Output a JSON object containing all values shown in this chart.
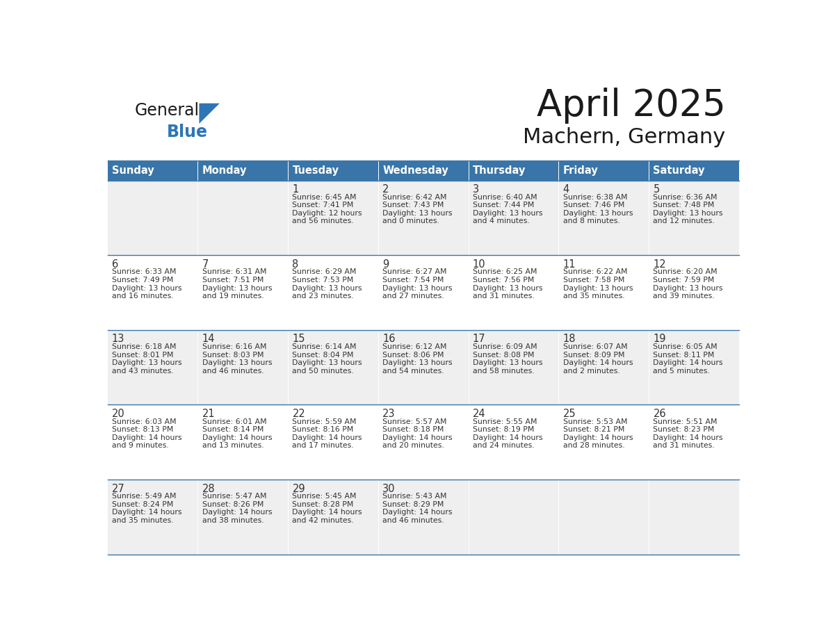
{
  "title": "April 2025",
  "subtitle": "Machern, Germany",
  "header_bg_color": "#3975A8",
  "header_text_color": "#FFFFFF",
  "row_bg_light": "#EFEFEF",
  "row_bg_white": "#FFFFFF",
  "border_color": "#3975A8",
  "cell_text_color": "#333333",
  "days_of_week": [
    "Sunday",
    "Monday",
    "Tuesday",
    "Wednesday",
    "Thursday",
    "Friday",
    "Saturday"
  ],
  "weeks": [
    [
      {
        "day": "",
        "sunrise": "",
        "sunset": "",
        "daylight": ""
      },
      {
        "day": "",
        "sunrise": "",
        "sunset": "",
        "daylight": ""
      },
      {
        "day": "1",
        "sunrise": "Sunrise: 6:45 AM",
        "sunset": "Sunset: 7:41 PM",
        "daylight": "Daylight: 12 hours\nand 56 minutes."
      },
      {
        "day": "2",
        "sunrise": "Sunrise: 6:42 AM",
        "sunset": "Sunset: 7:43 PM",
        "daylight": "Daylight: 13 hours\nand 0 minutes."
      },
      {
        "day": "3",
        "sunrise": "Sunrise: 6:40 AM",
        "sunset": "Sunset: 7:44 PM",
        "daylight": "Daylight: 13 hours\nand 4 minutes."
      },
      {
        "day": "4",
        "sunrise": "Sunrise: 6:38 AM",
        "sunset": "Sunset: 7:46 PM",
        "daylight": "Daylight: 13 hours\nand 8 minutes."
      },
      {
        "day": "5",
        "sunrise": "Sunrise: 6:36 AM",
        "sunset": "Sunset: 7:48 PM",
        "daylight": "Daylight: 13 hours\nand 12 minutes."
      }
    ],
    [
      {
        "day": "6",
        "sunrise": "Sunrise: 6:33 AM",
        "sunset": "Sunset: 7:49 PM",
        "daylight": "Daylight: 13 hours\nand 16 minutes."
      },
      {
        "day": "7",
        "sunrise": "Sunrise: 6:31 AM",
        "sunset": "Sunset: 7:51 PM",
        "daylight": "Daylight: 13 hours\nand 19 minutes."
      },
      {
        "day": "8",
        "sunrise": "Sunrise: 6:29 AM",
        "sunset": "Sunset: 7:53 PM",
        "daylight": "Daylight: 13 hours\nand 23 minutes."
      },
      {
        "day": "9",
        "sunrise": "Sunrise: 6:27 AM",
        "sunset": "Sunset: 7:54 PM",
        "daylight": "Daylight: 13 hours\nand 27 minutes."
      },
      {
        "day": "10",
        "sunrise": "Sunrise: 6:25 AM",
        "sunset": "Sunset: 7:56 PM",
        "daylight": "Daylight: 13 hours\nand 31 minutes."
      },
      {
        "day": "11",
        "sunrise": "Sunrise: 6:22 AM",
        "sunset": "Sunset: 7:58 PM",
        "daylight": "Daylight: 13 hours\nand 35 minutes."
      },
      {
        "day": "12",
        "sunrise": "Sunrise: 6:20 AM",
        "sunset": "Sunset: 7:59 PM",
        "daylight": "Daylight: 13 hours\nand 39 minutes."
      }
    ],
    [
      {
        "day": "13",
        "sunrise": "Sunrise: 6:18 AM",
        "sunset": "Sunset: 8:01 PM",
        "daylight": "Daylight: 13 hours\nand 43 minutes."
      },
      {
        "day": "14",
        "sunrise": "Sunrise: 6:16 AM",
        "sunset": "Sunset: 8:03 PM",
        "daylight": "Daylight: 13 hours\nand 46 minutes."
      },
      {
        "day": "15",
        "sunrise": "Sunrise: 6:14 AM",
        "sunset": "Sunset: 8:04 PM",
        "daylight": "Daylight: 13 hours\nand 50 minutes."
      },
      {
        "day": "16",
        "sunrise": "Sunrise: 6:12 AM",
        "sunset": "Sunset: 8:06 PM",
        "daylight": "Daylight: 13 hours\nand 54 minutes."
      },
      {
        "day": "17",
        "sunrise": "Sunrise: 6:09 AM",
        "sunset": "Sunset: 8:08 PM",
        "daylight": "Daylight: 13 hours\nand 58 minutes."
      },
      {
        "day": "18",
        "sunrise": "Sunrise: 6:07 AM",
        "sunset": "Sunset: 8:09 PM",
        "daylight": "Daylight: 14 hours\nand 2 minutes."
      },
      {
        "day": "19",
        "sunrise": "Sunrise: 6:05 AM",
        "sunset": "Sunset: 8:11 PM",
        "daylight": "Daylight: 14 hours\nand 5 minutes."
      }
    ],
    [
      {
        "day": "20",
        "sunrise": "Sunrise: 6:03 AM",
        "sunset": "Sunset: 8:13 PM",
        "daylight": "Daylight: 14 hours\nand 9 minutes."
      },
      {
        "day": "21",
        "sunrise": "Sunrise: 6:01 AM",
        "sunset": "Sunset: 8:14 PM",
        "daylight": "Daylight: 14 hours\nand 13 minutes."
      },
      {
        "day": "22",
        "sunrise": "Sunrise: 5:59 AM",
        "sunset": "Sunset: 8:16 PM",
        "daylight": "Daylight: 14 hours\nand 17 minutes."
      },
      {
        "day": "23",
        "sunrise": "Sunrise: 5:57 AM",
        "sunset": "Sunset: 8:18 PM",
        "daylight": "Daylight: 14 hours\nand 20 minutes."
      },
      {
        "day": "24",
        "sunrise": "Sunrise: 5:55 AM",
        "sunset": "Sunset: 8:19 PM",
        "daylight": "Daylight: 14 hours\nand 24 minutes."
      },
      {
        "day": "25",
        "sunrise": "Sunrise: 5:53 AM",
        "sunset": "Sunset: 8:21 PM",
        "daylight": "Daylight: 14 hours\nand 28 minutes."
      },
      {
        "day": "26",
        "sunrise": "Sunrise: 5:51 AM",
        "sunset": "Sunset: 8:23 PM",
        "daylight": "Daylight: 14 hours\nand 31 minutes."
      }
    ],
    [
      {
        "day": "27",
        "sunrise": "Sunrise: 5:49 AM",
        "sunset": "Sunset: 8:24 PM",
        "daylight": "Daylight: 14 hours\nand 35 minutes."
      },
      {
        "day": "28",
        "sunrise": "Sunrise: 5:47 AM",
        "sunset": "Sunset: 8:26 PM",
        "daylight": "Daylight: 14 hours\nand 38 minutes."
      },
      {
        "day": "29",
        "sunrise": "Sunrise: 5:45 AM",
        "sunset": "Sunset: 8:28 PM",
        "daylight": "Daylight: 14 hours\nand 42 minutes."
      },
      {
        "day": "30",
        "sunrise": "Sunrise: 5:43 AM",
        "sunset": "Sunset: 8:29 PM",
        "daylight": "Daylight: 14 hours\nand 46 minutes."
      },
      {
        "day": "",
        "sunrise": "",
        "sunset": "",
        "daylight": ""
      },
      {
        "day": "",
        "sunrise": "",
        "sunset": "",
        "daylight": ""
      },
      {
        "day": "",
        "sunrise": "",
        "sunset": "",
        "daylight": ""
      }
    ]
  ],
  "logo_general_color": "#1a1a1a",
  "logo_blue_color": "#2E75B6",
  "logo_triangle_color": "#2E75B6",
  "title_color": "#1a1a1a",
  "subtitle_color": "#1a1a1a"
}
